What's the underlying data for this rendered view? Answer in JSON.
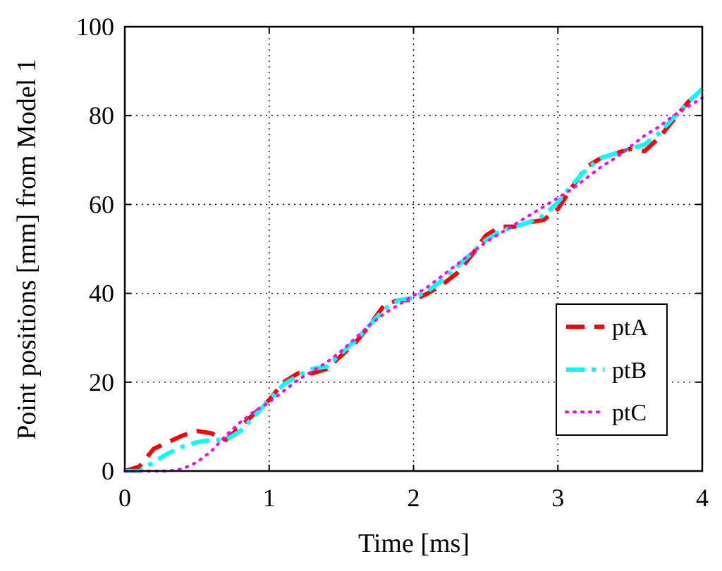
{
  "colors": {
    "background": "#ffffff",
    "axis": "#000000",
    "grid": "#000000",
    "ptA": "#ff0000",
    "ptB": "#00ffff",
    "ptC": "#ff00ff"
  },
  "chart_data": {
    "type": "line",
    "title": "",
    "xlabel": "Time [ms]",
    "ylabel": "Point positions [mm] from Model 1",
    "xlim": [
      0,
      4
    ],
    "ylim": [
      0,
      100
    ],
    "xticks": [
      0,
      1,
      2,
      3,
      4
    ],
    "yticks": [
      0,
      20,
      40,
      60,
      80,
      100
    ],
    "xtick_labels": [
      "0",
      "1",
      "2",
      "3",
      "4"
    ],
    "ytick_labels": [
      "0",
      "20",
      "40",
      "60",
      "80",
      "100"
    ],
    "grid": true,
    "legend_position": "bottom-right",
    "series": [
      {
        "name": "ptA",
        "style": "dashed",
        "color": "#ff0000",
        "x": [
          0,
          0.1,
          0.2,
          0.3,
          0.4,
          0.5,
          0.6,
          0.7,
          0.8,
          0.9,
          1.0,
          1.1,
          1.2,
          1.3,
          1.4,
          1.5,
          1.6,
          1.7,
          1.8,
          1.9,
          2.0,
          2.1,
          2.2,
          2.3,
          2.4,
          2.5,
          2.6,
          2.7,
          2.8,
          2.9,
          3.0,
          3.1,
          3.2,
          3.3,
          3.4,
          3.5,
          3.6,
          3.7,
          3.8,
          3.9,
          4.0
        ],
        "y": [
          0,
          1,
          5,
          6.5,
          8,
          9,
          8.5,
          7,
          10,
          13,
          16,
          20,
          22,
          22,
          23,
          26,
          29,
          33,
          37.5,
          38.5,
          38.5,
          40,
          42,
          44.5,
          48.5,
          53,
          55,
          55,
          56,
          56.5,
          59,
          64,
          68.5,
          70.5,
          71.5,
          72.5,
          72,
          75,
          79,
          83,
          86
        ]
      },
      {
        "name": "ptB",
        "style": "dash-dot",
        "color": "#00ffff",
        "x": [
          0,
          0.1,
          0.2,
          0.3,
          0.4,
          0.5,
          0.6,
          0.7,
          0.8,
          0.9,
          1.0,
          1.1,
          1.2,
          1.3,
          1.4,
          1.5,
          1.6,
          1.7,
          1.8,
          1.9,
          2.0,
          2.1,
          2.2,
          2.3,
          2.4,
          2.5,
          2.6,
          2.7,
          2.8,
          2.9,
          3.0,
          3.1,
          3.2,
          3.3,
          3.4,
          3.5,
          3.6,
          3.7,
          3.8,
          3.9,
          4.0
        ],
        "y": [
          0,
          0,
          2,
          4,
          5.5,
          6.5,
          7,
          7,
          9,
          12.5,
          16,
          19.5,
          21.5,
          23,
          23.5,
          26.5,
          29.5,
          33,
          36.5,
          38.5,
          39,
          40.5,
          43,
          46,
          49,
          52,
          54,
          55,
          56,
          57.5,
          60.5,
          64.5,
          68,
          70.5,
          71.5,
          72.5,
          73.5,
          76,
          79.5,
          83,
          86
        ]
      },
      {
        "name": "ptC",
        "style": "dotted",
        "color": "#ff00ff",
        "x": [
          0,
          0.1,
          0.2,
          0.3,
          0.4,
          0.5,
          0.6,
          0.7,
          0.8,
          0.9,
          1.0,
          1.1,
          1.2,
          1.3,
          1.4,
          1.5,
          1.6,
          1.7,
          1.8,
          1.9,
          2.0,
          2.1,
          2.2,
          2.3,
          2.4,
          2.5,
          2.6,
          2.7,
          2.8,
          2.9,
          3.0,
          3.1,
          3.2,
          3.3,
          3.4,
          3.5,
          3.6,
          3.7,
          3.8,
          3.9,
          4.0
        ],
        "y": [
          0,
          0,
          0,
          0,
          0.5,
          2,
          4.5,
          8,
          11,
          13.5,
          15.5,
          18,
          20.5,
          22.5,
          24.5,
          27,
          30,
          33,
          35.5,
          37.5,
          39.5,
          41.5,
          44,
          46.5,
          49,
          51.5,
          53.5,
          55.5,
          57.5,
          59.5,
          61.5,
          63.5,
          66,
          68.5,
          70.5,
          73,
          75.5,
          77.5,
          80,
          82,
          84
        ]
      }
    ]
  }
}
